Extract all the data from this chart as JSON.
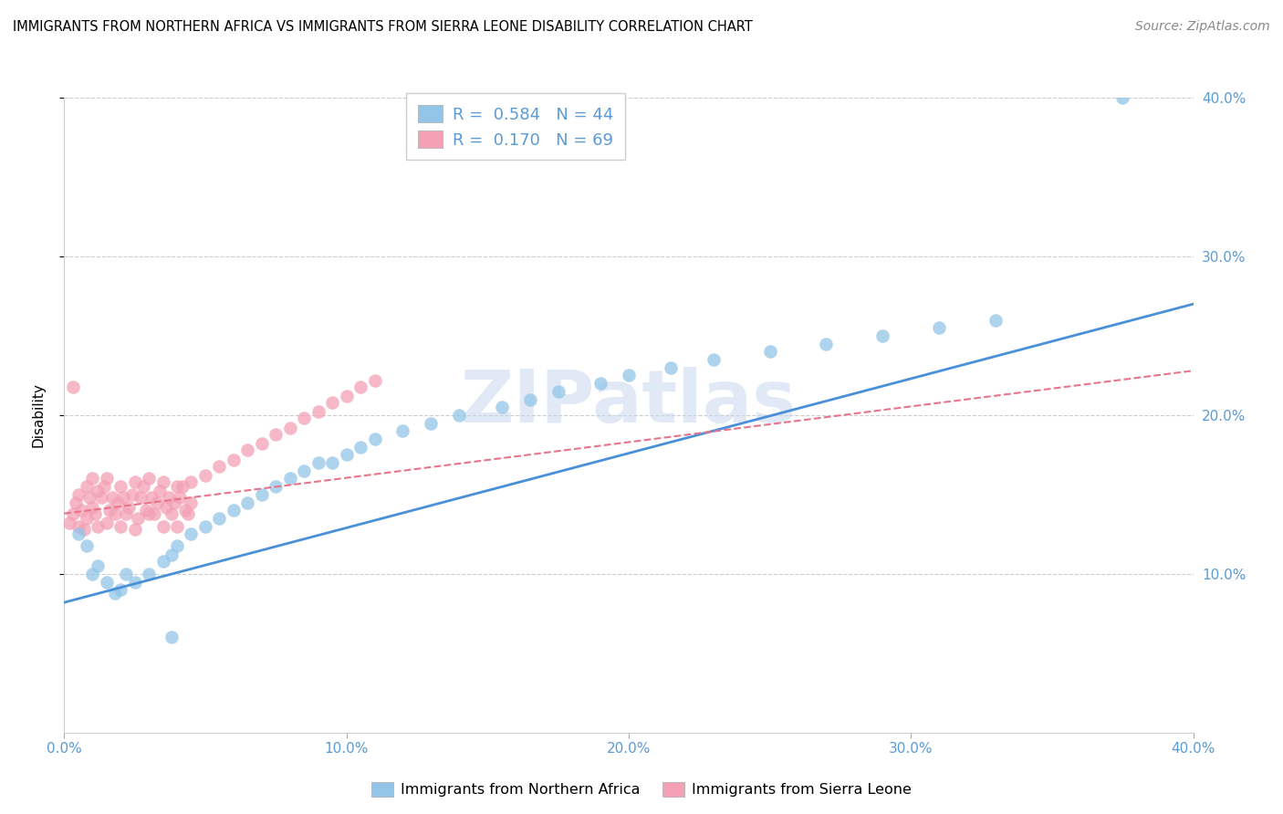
{
  "title": "IMMIGRANTS FROM NORTHERN AFRICA VS IMMIGRANTS FROM SIERRA LEONE DISABILITY CORRELATION CHART",
  "source": "Source: ZipAtlas.com",
  "ylabel": "Disability",
  "xlim": [
    0.0,
    0.4
  ],
  "ylim": [
    0.0,
    0.4
  ],
  "xtick_labels": [
    "0.0%",
    "",
    "10.0%",
    "",
    "20.0%",
    "",
    "30.0%",
    "",
    "40.0%"
  ],
  "xtick_vals": [
    0.0,
    0.05,
    0.1,
    0.15,
    0.2,
    0.25,
    0.3,
    0.35,
    0.4
  ],
  "ytick_labels": [
    "10.0%",
    "20.0%",
    "30.0%",
    "40.0%"
  ],
  "ytick_vals": [
    0.1,
    0.2,
    0.3,
    0.4
  ],
  "r_blue": 0.584,
  "n_blue": 44,
  "r_pink": 0.17,
  "n_pink": 69,
  "blue_color": "#92C5E8",
  "pink_color": "#F4A0B5",
  "blue_line_color": "#4A90D9",
  "pink_line_color": "#E8748A",
  "watermark": "ZIPatlas",
  "blue_x": [
    0.005,
    0.008,
    0.01,
    0.012,
    0.015,
    0.018,
    0.02,
    0.022,
    0.025,
    0.03,
    0.035,
    0.038,
    0.04,
    0.045,
    0.05,
    0.055,
    0.06,
    0.065,
    0.07,
    0.075,
    0.08,
    0.085,
    0.09,
    0.095,
    0.1,
    0.105,
    0.11,
    0.12,
    0.13,
    0.14,
    0.155,
    0.165,
    0.175,
    0.19,
    0.2,
    0.215,
    0.23,
    0.25,
    0.27,
    0.29,
    0.31,
    0.33,
    0.375,
    0.038
  ],
  "blue_y": [
    0.125,
    0.118,
    0.1,
    0.105,
    0.095,
    0.088,
    0.09,
    0.1,
    0.095,
    0.1,
    0.108,
    0.112,
    0.118,
    0.125,
    0.13,
    0.135,
    0.14,
    0.145,
    0.15,
    0.155,
    0.16,
    0.165,
    0.17,
    0.17,
    0.175,
    0.18,
    0.185,
    0.19,
    0.195,
    0.2,
    0.205,
    0.21,
    0.215,
    0.22,
    0.225,
    0.23,
    0.235,
    0.24,
    0.245,
    0.25,
    0.255,
    0.26,
    0.4,
    0.06
  ],
  "pink_x": [
    0.002,
    0.003,
    0.004,
    0.005,
    0.005,
    0.006,
    0.007,
    0.008,
    0.008,
    0.009,
    0.01,
    0.01,
    0.011,
    0.012,
    0.012,
    0.013,
    0.014,
    0.015,
    0.015,
    0.016,
    0.017,
    0.018,
    0.019,
    0.02,
    0.02,
    0.021,
    0.022,
    0.023,
    0.024,
    0.025,
    0.025,
    0.026,
    0.027,
    0.028,
    0.029,
    0.03,
    0.03,
    0.031,
    0.032,
    0.033,
    0.034,
    0.035,
    0.035,
    0.036,
    0.037,
    0.038,
    0.039,
    0.04,
    0.04,
    0.041,
    0.042,
    0.043,
    0.044,
    0.045,
    0.045,
    0.05,
    0.055,
    0.06,
    0.065,
    0.07,
    0.075,
    0.08,
    0.085,
    0.09,
    0.095,
    0.1,
    0.105,
    0.11,
    0.003
  ],
  "pink_y": [
    0.132,
    0.138,
    0.145,
    0.15,
    0.13,
    0.14,
    0.128,
    0.135,
    0.155,
    0.148,
    0.142,
    0.16,
    0.138,
    0.13,
    0.152,
    0.148,
    0.155,
    0.16,
    0.132,
    0.14,
    0.148,
    0.138,
    0.145,
    0.13,
    0.155,
    0.148,
    0.138,
    0.142,
    0.15,
    0.158,
    0.128,
    0.135,
    0.148,
    0.155,
    0.14,
    0.138,
    0.16,
    0.148,
    0.138,
    0.145,
    0.152,
    0.158,
    0.13,
    0.142,
    0.148,
    0.138,
    0.145,
    0.155,
    0.13,
    0.148,
    0.155,
    0.14,
    0.138,
    0.145,
    0.158,
    0.162,
    0.168,
    0.172,
    0.178,
    0.182,
    0.188,
    0.192,
    0.198,
    0.202,
    0.208,
    0.212,
    0.218,
    0.222,
    0.218
  ],
  "blue_trend_x0": 0.0,
  "blue_trend_y0": 0.082,
  "blue_trend_x1": 0.4,
  "blue_trend_y1": 0.27,
  "pink_trend_x0": 0.0,
  "pink_trend_y0": 0.138,
  "pink_trend_x1": 0.4,
  "pink_trend_y1": 0.228
}
